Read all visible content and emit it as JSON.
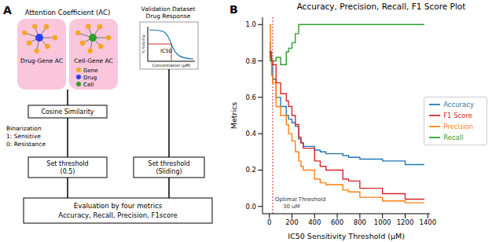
{
  "panel_labels": [
    "A",
    "B"
  ],
  "diagram": {
    "ac_title": "Attention Coefficient (AC)",
    "ac_panels": [
      "Drug-Gene AC",
      "Cell-Gene AC"
    ],
    "node_legend": [
      {
        "label": "Gene",
        "color": "#f5a623"
      },
      {
        "label": "Drug",
        "color": "#2a3ef5"
      },
      {
        "label": "Cell",
        "color": "#2ca02c"
      }
    ],
    "validation": {
      "title": [
        "Validation Dataset",
        "Drug Response"
      ],
      "y_label": "% Viability",
      "x_label": "Concentration (μM)",
      "marker": "IC50"
    },
    "similarity": "Cosine Similarity",
    "binarization": [
      "Binarization",
      "1: Sensitive",
      "0: Resistance"
    ],
    "threshold_left": [
      "Set threshold",
      "(0.5)"
    ],
    "threshold_right": [
      "Set threshold",
      "(Sliding)"
    ],
    "evaluation": [
      "Evaluation by four metrics",
      "Accuracy, Recall, Precision, F1score"
    ]
  },
  "chart_data": {
    "type": "line",
    "title": "Accuracy, Precision, Recall, F1 Score Plot",
    "x_label": "IC50 Sensitivity Threshold (μM)",
    "y_label": "Metrics",
    "line_style": "step",
    "grid": false,
    "legend": "right",
    "x": [
      0,
      10,
      20,
      30,
      60,
      100,
      150,
      170,
      200,
      230,
      260,
      280,
      300,
      400,
      450,
      500,
      650,
      700,
      800,
      1000,
      1200,
      1370
    ],
    "series": [
      {
        "name": "Accuracy",
        "color": "#1f77b4",
        "values": [
          0.9,
          0.85,
          0.78,
          0.7,
          0.6,
          0.55,
          0.5,
          0.48,
          0.46,
          0.44,
          0.37,
          0.35,
          0.33,
          0.31,
          0.3,
          0.29,
          0.28,
          0.27,
          0.26,
          0.25,
          0.23,
          0.23
        ]
      },
      {
        "name": "Precision",
        "color": "#ff7f0e",
        "values": [
          1.0,
          0.8,
          0.72,
          0.68,
          0.55,
          0.5,
          0.45,
          0.4,
          0.36,
          0.3,
          0.25,
          0.22,
          0.2,
          0.15,
          0.13,
          0.12,
          0.09,
          0.08,
          0.05,
          0.03,
          0.02,
          0.02
        ]
      },
      {
        "name": "Recall",
        "color": "#2ca02c",
        "values": [
          0.85,
          0.8,
          0.8,
          0.8,
          0.82,
          0.78,
          0.85,
          0.87,
          0.9,
          0.95,
          1.0,
          1.0,
          1.0,
          1.0,
          1.0,
          1.0,
          1.0,
          1.0,
          1.0,
          1.0,
          1.0,
          1.0
        ]
      },
      {
        "name": "F1 Score",
        "color": "#d62728",
        "values": [
          0.85,
          0.82,
          0.8,
          0.78,
          0.68,
          0.62,
          0.58,
          0.55,
          0.5,
          0.45,
          0.38,
          0.35,
          0.32,
          0.25,
          0.22,
          0.2,
          0.15,
          0.14,
          0.1,
          0.07,
          0.04,
          0.04
        ]
      }
    ],
    "xlim": [
      -60,
      1420
    ],
    "xticks": [
      0,
      200,
      400,
      600,
      800,
      1000,
      1200,
      1400
    ],
    "ylim": [
      -0.04,
      1.04
    ],
    "yticks": [
      {
        "value": 0,
        "label": "0.0"
      },
      {
        "value": 0.2,
        "label": "0.2"
      },
      {
        "value": 0.4,
        "label": "0.4"
      },
      {
        "value": 0.6,
        "label": "0.6"
      },
      {
        "value": 0.8,
        "label": "0.8"
      },
      {
        "value": 1,
        "label": "1.0"
      }
    ],
    "annotation": {
      "x": 30,
      "lines": [
        "Optimal Threshold",
        "30 uM"
      ]
    }
  }
}
